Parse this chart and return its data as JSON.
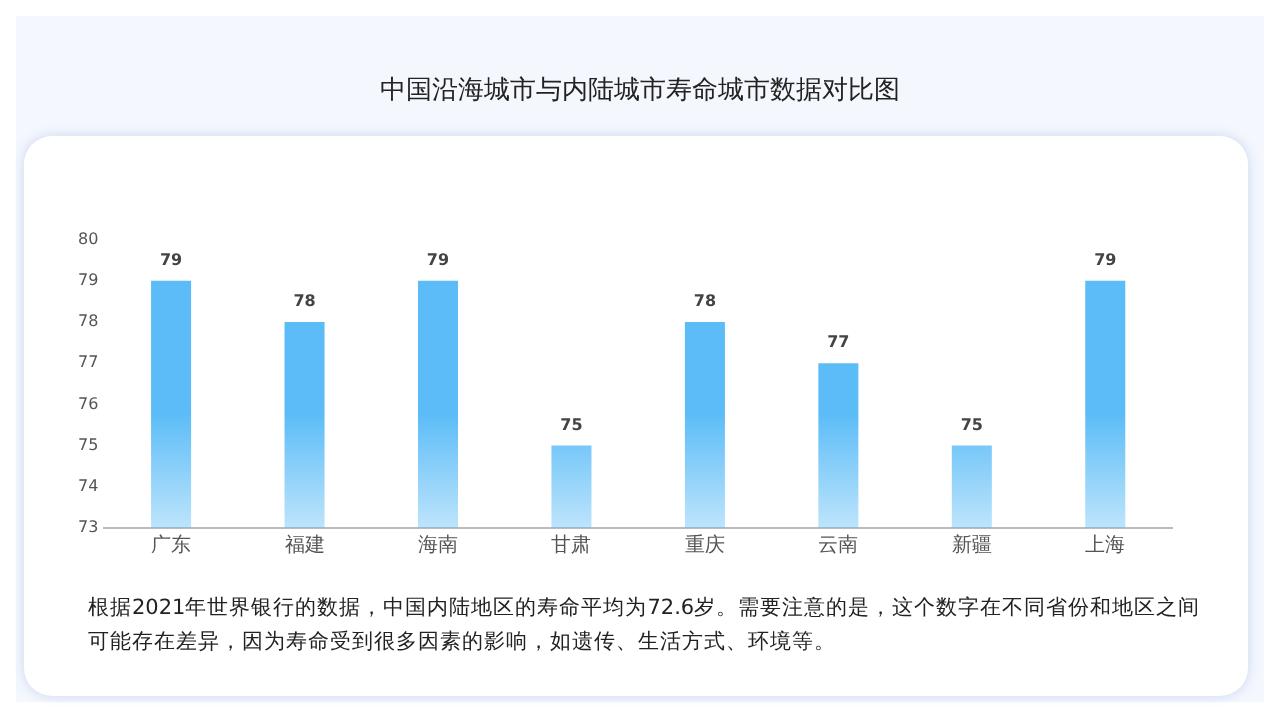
{
  "chart_data": {
    "type": "bar",
    "title": "中国沿海城市与内陆城市寿命城市数据对比图",
    "categories": [
      "广东",
      "福建",
      "海南",
      "甘肃",
      "重庆",
      "云南",
      "新疆",
      "上海"
    ],
    "values": [
      79,
      78,
      79,
      75,
      78,
      77,
      75,
      79
    ],
    "color": "#5bbcf7",
    "ylim": [
      73,
      80
    ],
    "yticks": [
      73,
      74,
      75,
      76,
      77,
      78,
      79,
      80
    ],
    "grid": false,
    "legend": false,
    "data_labels": true,
    "annotations": [
      "根据2021年世界银行的数据，中国内陆地区的寿命平均为72.6岁。需要注意的是，这个数字在不同省份和地区之间可能存在差异，因为寿命受到很多因素的影响，如遗传、生活方式、环境等。"
    ]
  }
}
